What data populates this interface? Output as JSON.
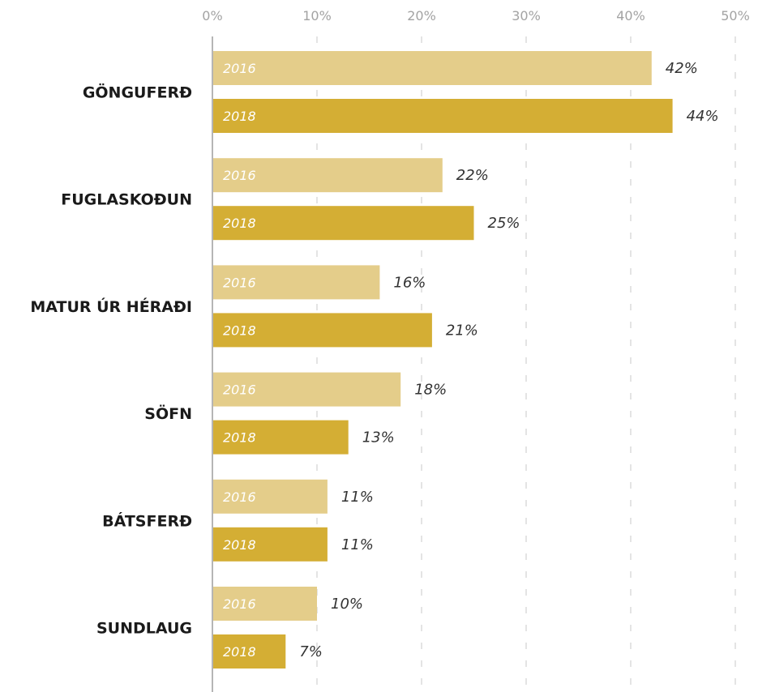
{
  "chart_data": {
    "type": "bar",
    "orientation": "horizontal",
    "title": "",
    "xlabel": "",
    "ylabel": "",
    "xlim": [
      0,
      50
    ],
    "tick_values": [
      0,
      10,
      20,
      30,
      40,
      50
    ],
    "tick_labels": [
      "0%",
      "10%",
      "20%",
      "30%",
      "40%",
      "50%"
    ],
    "grid": true,
    "legend": "none",
    "categories": [
      "GÖNGUFERÐ",
      "FUGLASKOÐUN",
      "MATUR ÚR HÉRAÐI",
      "SÖFN",
      "BÁTSFERÐ",
      "SUNDLAUG"
    ],
    "series": [
      {
        "name": "2016",
        "color": "#e4cd8a",
        "values": [
          42,
          22,
          16,
          18,
          11,
          10
        ],
        "labels": [
          "42%",
          "22%",
          "16%",
          "18%",
          "11%",
          "10%"
        ]
      },
      {
        "name": "2018",
        "color": "#d4ae34",
        "values": [
          44,
          25,
          21,
          13,
          11,
          7
        ],
        "labels": [
          "44%",
          "25%",
          "21%",
          "13%",
          "11%",
          "7%"
        ]
      }
    ]
  }
}
